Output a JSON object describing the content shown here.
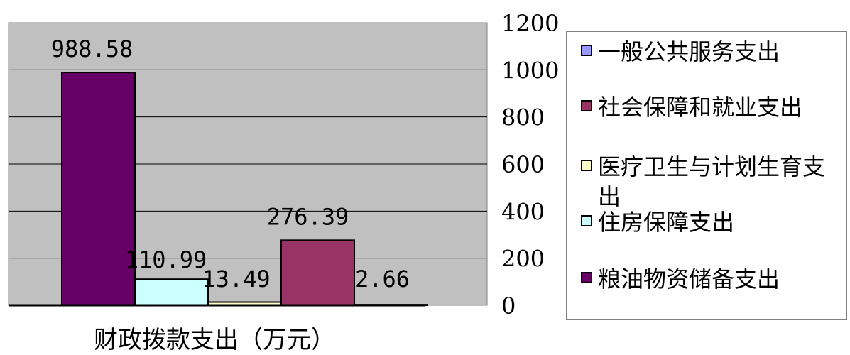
{
  "chart_data": {
    "type": "bar",
    "xlabel": "财政拨款支出（万元）",
    "ylim": [
      0,
      1200
    ],
    "yticks": [
      "1200",
      "1000",
      "800",
      "600",
      "400",
      "200",
      "0"
    ],
    "grid": true,
    "legend_position": "right",
    "series": [
      {
        "name": "粮油物资储备支出",
        "value": 988.58,
        "label": "988.58",
        "color": "#660066"
      },
      {
        "name": "住房保障支出",
        "value": 110.99,
        "label": "110.99",
        "color": "#CCFFFF"
      },
      {
        "name": "医疗卫生与计划生育支出",
        "value": 13.49,
        "label": "13.49",
        "color": "#FFFFCC"
      },
      {
        "name": "社会保障和就业支出",
        "value": 276.39,
        "label": "276.39",
        "color": "#993366"
      },
      {
        "name": "一般公共服务支出",
        "value": 2.66,
        "label": "2.66",
        "color": "#9999FF"
      }
    ],
    "legend": [
      {
        "label": "一般公共服务支出",
        "color": "#9999FF"
      },
      {
        "label": "社会保障和就业支出",
        "color": "#993366"
      },
      {
        "label": "医疗卫生与计划生育支出",
        "color": "#FFFFCC"
      },
      {
        "label": "住房保障支出",
        "color": "#CCFFFF"
      },
      {
        "label": "粮油物资储备支出",
        "color": "#660066"
      }
    ],
    "plot_background": "#C0C0C0"
  }
}
